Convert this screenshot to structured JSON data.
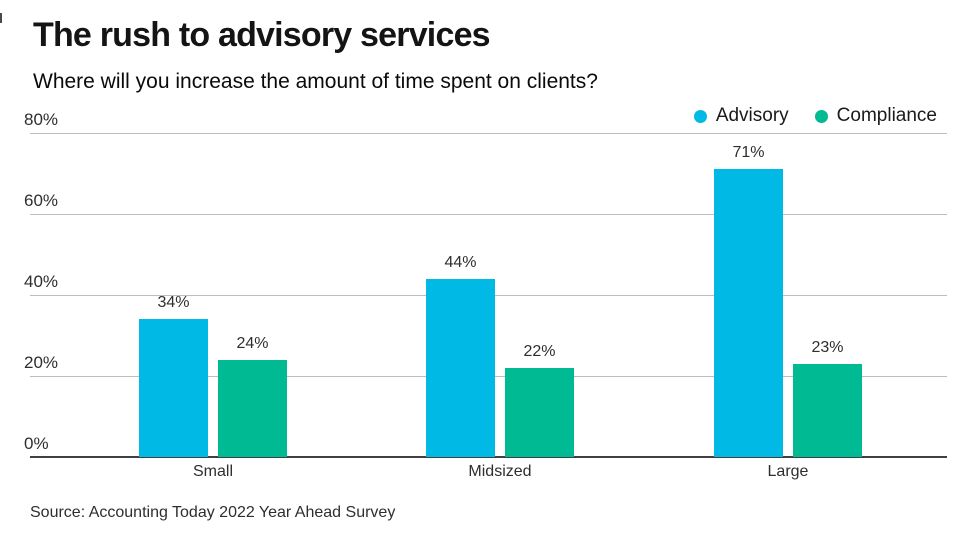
{
  "chart_data": {
    "type": "bar",
    "title": "The rush to advisory services",
    "subtitle": "Where will you increase the amount of time spent on clients?",
    "categories": [
      "Small",
      "Midsized",
      "Large"
    ],
    "series": [
      {
        "name": "Advisory",
        "color": "#00b9e5",
        "values": [
          34,
          44,
          71
        ]
      },
      {
        "name": "Compliance",
        "color": "#00ba94",
        "values": [
          24,
          22,
          23
        ]
      }
    ],
    "value_label_suffix": "%",
    "yticks": [
      80,
      60,
      40,
      20,
      0
    ],
    "ytick_labels": [
      "80%",
      "60%",
      "40%",
      "20%",
      "0%"
    ],
    "ylim": [
      0,
      80
    ],
    "grid": true,
    "legend_position": "top-right",
    "data_labels_shown": [
      "34%",
      "24%",
      "44%",
      "22%",
      "71%",
      "23%"
    ],
    "source": "Source: Accounting Today 2022 Year Ahead Survey"
  },
  "colors": {
    "advisory": "#00b9e5",
    "compliance": "#00ba94",
    "gridline": "#bdbdbd",
    "axis": "#404040",
    "text": "#2e2e2e",
    "title": "#141414",
    "background": "#ffffff"
  }
}
